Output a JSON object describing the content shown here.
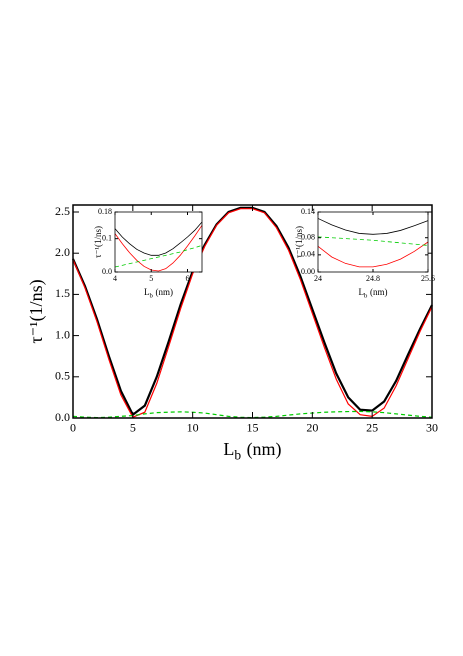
{
  "chart_data": [
    {
      "type": "line",
      "ylabel": "τ⁻¹(1/ns)",
      "xlabel": [
        "L",
        "b",
        "(nm)"
      ],
      "x": [
        0,
        1,
        2,
        3,
        4,
        5,
        6,
        7,
        8,
        9,
        10,
        11,
        12,
        13,
        14,
        15,
        16,
        17,
        18,
        19,
        20,
        21,
        22,
        23,
        24,
        25,
        26,
        27,
        28,
        29,
        30
      ],
      "series": [
        {
          "color": "#000000",
          "values": [
            1.93,
            1.6,
            1.2,
            0.75,
            0.33,
            0.04,
            0.15,
            0.5,
            0.93,
            1.38,
            1.78,
            2.1,
            2.35,
            2.5,
            2.55,
            2.55,
            2.5,
            2.33,
            2.07,
            1.72,
            1.32,
            0.92,
            0.54,
            0.25,
            0.1,
            0.09,
            0.2,
            0.45,
            0.77,
            1.08,
            1.37
          ]
        },
        {
          "color": "#ff0000",
          "values": [
            1.92,
            1.58,
            1.17,
            0.71,
            0.28,
            0.01,
            0.07,
            0.42,
            0.87,
            1.33,
            1.75,
            2.08,
            2.34,
            2.49,
            2.54,
            2.54,
            2.49,
            2.31,
            2.04,
            1.68,
            1.27,
            0.86,
            0.47,
            0.17,
            0.04,
            0.02,
            0.12,
            0.39,
            0.72,
            1.05,
            1.35
          ]
        },
        {
          "color": "#00cc00",
          "linestyle": "dashed",
          "values": [
            0.02,
            0.01,
            0.005,
            0.01,
            0.02,
            0.03,
            0.05,
            0.065,
            0.07,
            0.075,
            0.07,
            0.06,
            0.04,
            0.02,
            0.01,
            0.005,
            0.01,
            0.02,
            0.035,
            0.05,
            0.06,
            0.07,
            0.075,
            0.078,
            0.08,
            0.075,
            0.065,
            0.05,
            0.035,
            0.02,
            0.01
          ]
        }
      ],
      "xlim": [
        0,
        30
      ],
      "xticks": [
        0,
        5,
        10,
        15,
        20,
        25,
        30
      ],
      "ylim": [
        0,
        2.585
      ],
      "yticks": [
        {
          "value": 0,
          "label": "0.0"
        },
        {
          "value": 0.5,
          "label": "0.5"
        },
        {
          "value": 1,
          "label": "1.0"
        },
        {
          "value": 1.5,
          "label": "1.5"
        },
        {
          "value": 2,
          "label": "2.0"
        },
        2.5
      ]
    },
    {
      "type": "line",
      "ylabel": "τ⁻¹(1/ns)",
      "xlabel": [
        "L",
        "b",
        "(nm)"
      ],
      "x": [
        4,
        4.2,
        4.4,
        4.6,
        4.8,
        5,
        5.2,
        5.4,
        5.6,
        5.8,
        6,
        6.2,
        6.4
      ],
      "series": [
        {
          "color": "#000000",
          "values": [
            0.13,
            0.105,
            0.085,
            0.068,
            0.057,
            0.05,
            0.05,
            0.057,
            0.07,
            0.087,
            0.105,
            0.125,
            0.15
          ]
        },
        {
          "color": "#ff0000",
          "values": [
            0.115,
            0.085,
            0.058,
            0.035,
            0.017,
            0.006,
            0.003,
            0.01,
            0.027,
            0.05,
            0.078,
            0.108,
            0.14
          ]
        },
        {
          "color": "#00cc00",
          "linestyle": "dashed",
          "values": [
            0.015,
            0.02,
            0.025,
            0.03,
            0.035,
            0.04,
            0.045,
            0.05,
            0.055,
            0.06,
            0.067,
            0.073,
            0.08
          ]
        }
      ],
      "xlim": [
        4,
        6.4
      ],
      "xticks": [
        4,
        5,
        6
      ],
      "ylim": [
        0,
        0.18
      ],
      "yticks": [
        {
          "value": 0,
          "label": "0.0"
        },
        0.1,
        0.18
      ]
    },
    {
      "type": "line",
      "ylabel": "τ⁻¹(1/ns)",
      "xlabel": [
        "L",
        "b",
        "(nm)"
      ],
      "x": [
        24,
        24.2,
        24.4,
        24.6,
        24.8,
        25,
        25.2,
        25.4,
        25.6
      ],
      "series": [
        {
          "color": "#000000",
          "values": [
            0.125,
            0.11,
            0.098,
            0.09,
            0.088,
            0.09,
            0.097,
            0.108,
            0.12
          ]
        },
        {
          "color": "#ff0000",
          "values": [
            0.06,
            0.035,
            0.02,
            0.012,
            0.012,
            0.018,
            0.03,
            0.048,
            0.07
          ]
        },
        {
          "color": "#00cc00",
          "linestyle": "dashed",
          "values": [
            0.082,
            0.08,
            0.078,
            0.076,
            0.074,
            0.071,
            0.068,
            0.065,
            0.062
          ]
        }
      ],
      "xlim": [
        24,
        25.6
      ],
      "xticks": [
        24,
        24.8,
        25.6
      ],
      "ylim": [
        0,
        0.14
      ],
      "yticks": [
        {
          "value": 0,
          "label": "0.00"
        },
        {
          "value": 0.04,
          "label": "0.04"
        },
        {
          "value": 0.08,
          "label": "0.08"
        },
        0.14
      ]
    }
  ]
}
